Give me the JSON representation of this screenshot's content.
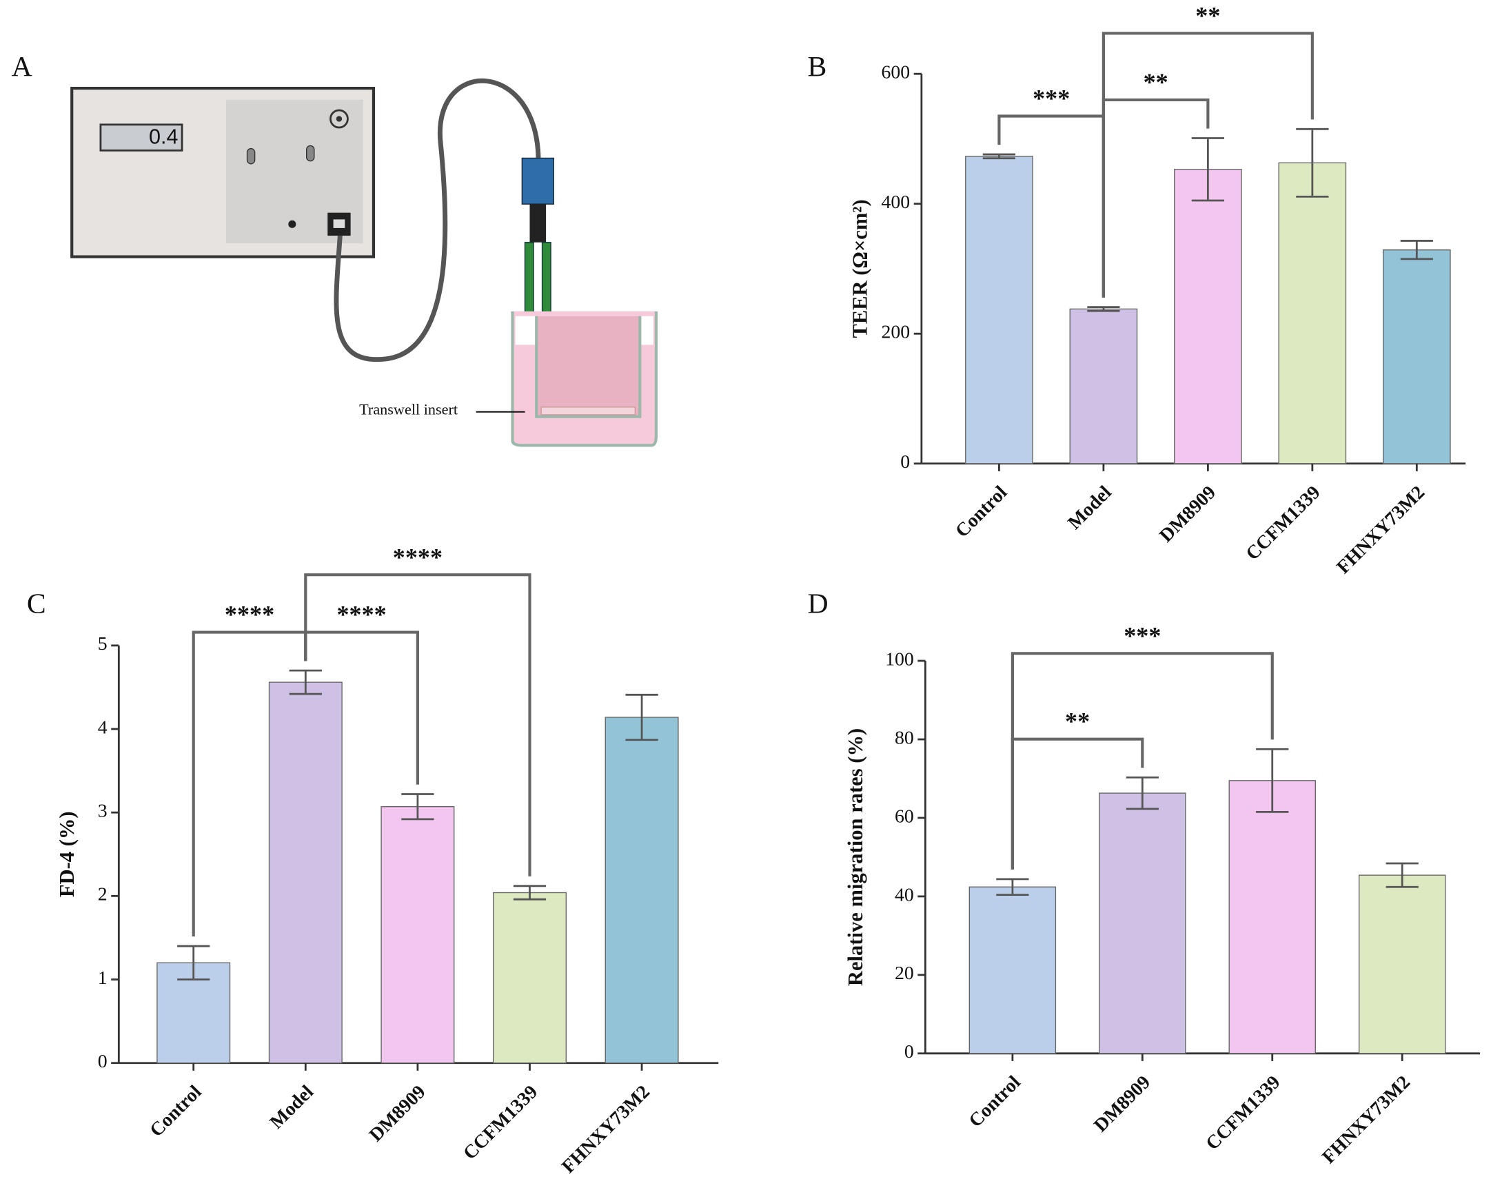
{
  "diagram": {
    "panel_label": "A",
    "display": "0.4",
    "callout": "Transwell insert"
  },
  "chart_data": [
    {
      "type": "bar",
      "panel_label": "B",
      "y_label": "TEER (Ω×cm²)",
      "categories": [
        "Control",
        "Model",
        "DM8909",
        "CCFM1339",
        "FHNXY73M2"
      ],
      "values": [
        473,
        238,
        453,
        463,
        329
      ],
      "errors": [
        3,
        3,
        48,
        52,
        14
      ],
      "colors": [
        "#bccfea",
        "#cfc1e6",
        "#f3c6f0",
        "#dde9c0",
        "#93c3d6"
      ],
      "ylim": [
        0,
        600
      ],
      "yticks": [
        0,
        200,
        400,
        600
      ],
      "annotations": [
        {
          "between": [
            "Control",
            "Model"
          ],
          "label": "***"
        },
        {
          "between": [
            "Model",
            "DM8909"
          ],
          "label": "**"
        },
        {
          "between": [
            "Model",
            "CCFM1339"
          ],
          "label": "**"
        }
      ]
    },
    {
      "type": "bar",
      "panel_label": "C",
      "y_label": "FD-4 (%)",
      "categories": [
        "Control",
        "Model",
        "DM8909",
        "CCFM1339",
        "FHNXY73M2"
      ],
      "values": [
        1.2,
        4.56,
        3.07,
        2.04,
        4.14
      ],
      "errors": [
        0.2,
        0.14,
        0.15,
        0.08,
        0.27
      ],
      "colors": [
        "#bccfea",
        "#cfc1e6",
        "#f3c6f0",
        "#dde9c0",
        "#93c3d6"
      ],
      "ylim": [
        0,
        5
      ],
      "yticks": [
        0,
        1,
        2,
        3,
        4,
        5
      ],
      "annotations": [
        {
          "between": [
            "Control",
            "Model"
          ],
          "label": "****"
        },
        {
          "between": [
            "Model",
            "DM8909"
          ],
          "label": "****"
        },
        {
          "between": [
            "Model",
            "CCFM1339"
          ],
          "label": "****"
        }
      ]
    },
    {
      "type": "bar",
      "panel_label": "D",
      "y_label": "Relative migration rates (%)",
      "categories": [
        "Control",
        "DM8909",
        "CCFM1339",
        "FHNXY73M2"
      ],
      "values": [
        42.4,
        66.3,
        69.5,
        45.4
      ],
      "errors": [
        2,
        4,
        8,
        3
      ],
      "colors": [
        "#bccfea",
        "#cfc1e6",
        "#f3c6f0",
        "#dde9c0"
      ],
      "ylim": [
        0,
        100
      ],
      "yticks": [
        0,
        20,
        40,
        60,
        80,
        100
      ],
      "annotations": [
        {
          "between": [
            "Control",
            "DM8909"
          ],
          "label": "**"
        },
        {
          "between": [
            "Control",
            "CCFM1339"
          ],
          "label": "***"
        }
      ]
    }
  ]
}
